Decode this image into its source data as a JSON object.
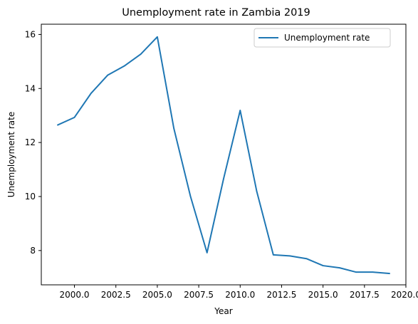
{
  "chart_data": {
    "type": "line",
    "title": "Unemployment rate in Zambia 2019",
    "xlabel": "Year",
    "ylabel": "Unemployment rate",
    "xlim": [
      1998.0,
      2020.0
    ],
    "ylim": [
      6.73,
      16.38
    ],
    "xticks": [
      2000.0,
      2002.5,
      2005.0,
      2007.5,
      2010.0,
      2012.5,
      2015.0,
      2017.5,
      2020.0
    ],
    "xtick_labels": [
      "2000.0",
      "2002.5",
      "2005.0",
      "2007.5",
      "2010.0",
      "2012.5",
      "2015.0",
      "2017.5",
      "2020.0"
    ],
    "yticks": [
      8,
      10,
      12,
      14,
      16
    ],
    "ytick_labels": [
      "8",
      "10",
      "12",
      "14",
      "16"
    ],
    "grid": false,
    "legend_position": "upper-right",
    "series": [
      {
        "name": "Unemployment rate",
        "color": "#1f77b4",
        "x": [
          1999,
          2000,
          2001,
          2002,
          2003,
          2004,
          2005,
          2006,
          2007,
          2008,
          2009,
          2010,
          2011,
          2012,
          2013,
          2014,
          2015,
          2016,
          2017,
          2018,
          2019
        ],
        "y": [
          12.65,
          12.93,
          13.82,
          14.49,
          14.83,
          15.27,
          15.91,
          12.52,
          10.01,
          7.92,
          10.66,
          13.19,
          10.19,
          7.84,
          7.8,
          7.7,
          7.44,
          7.36,
          7.2,
          7.2,
          7.15
        ]
      }
    ]
  }
}
